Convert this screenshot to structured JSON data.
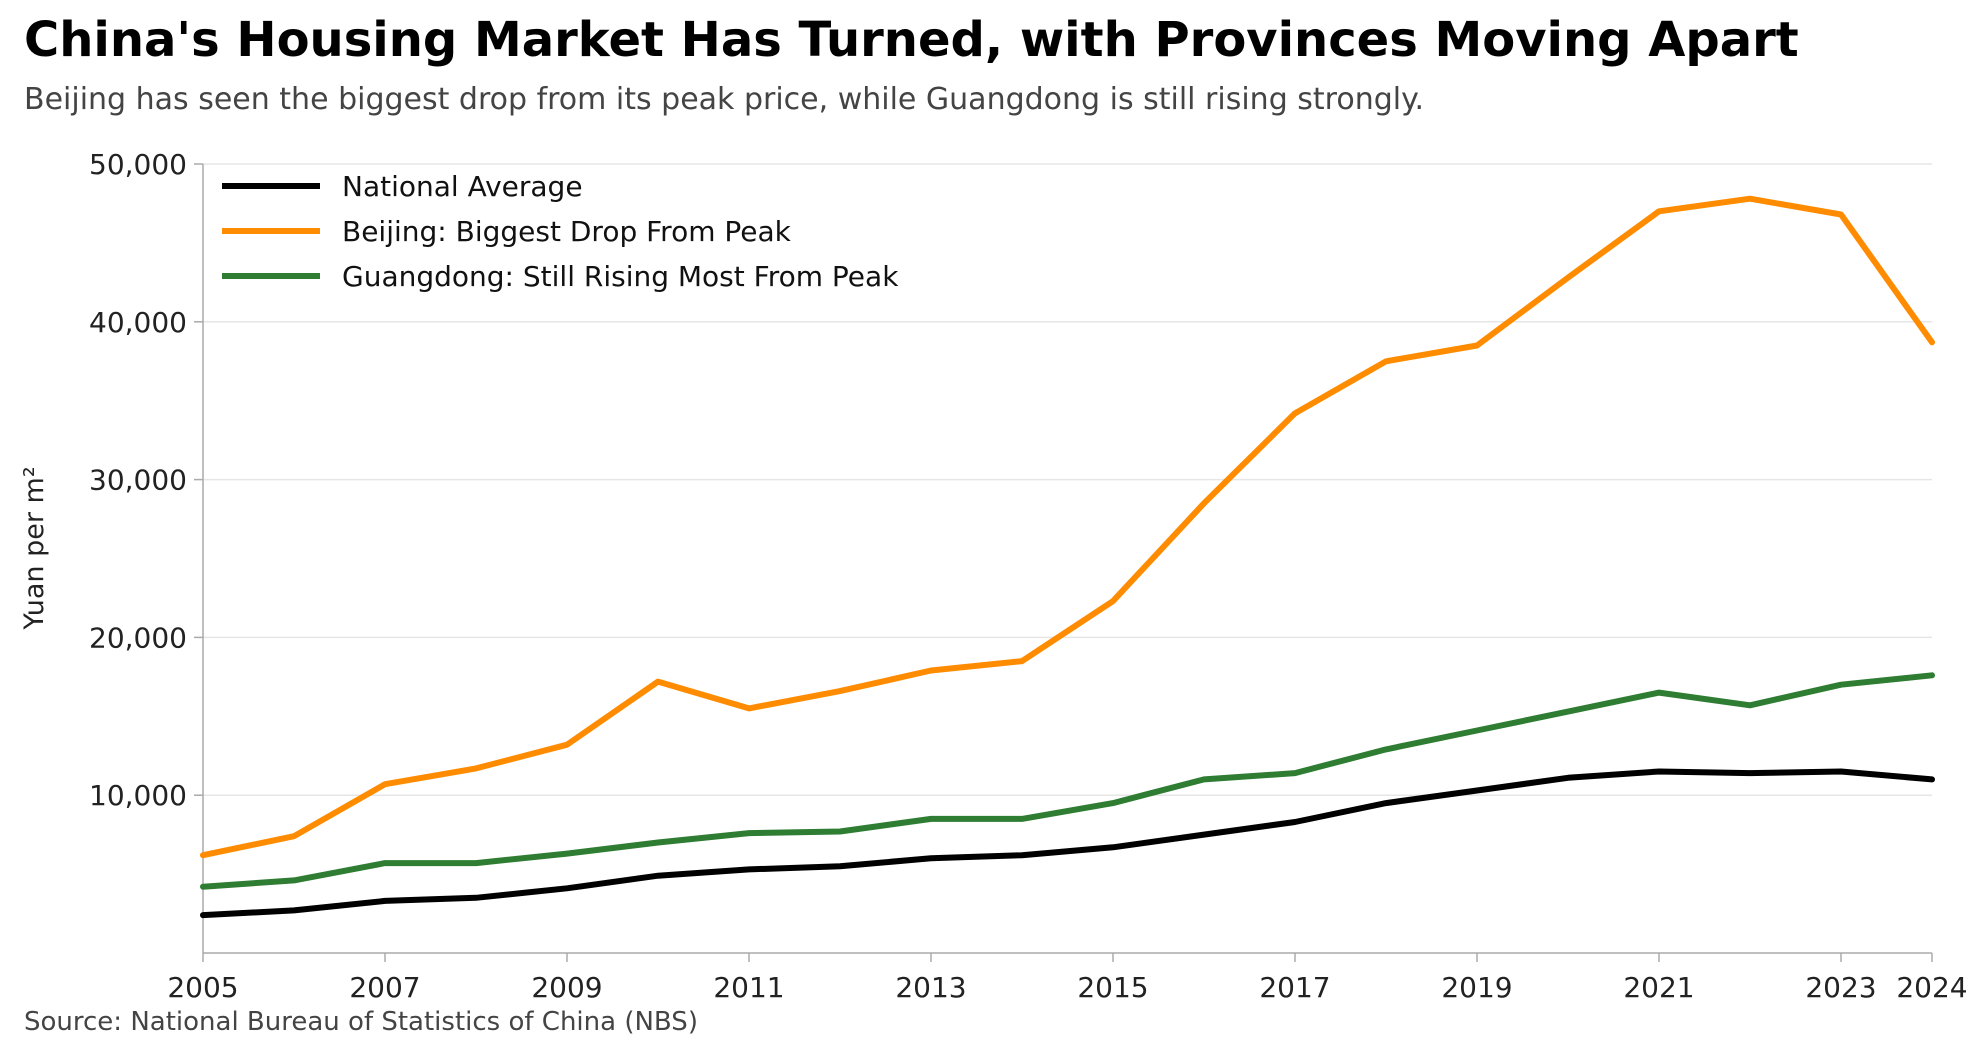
{
  "title": "China's Housing Market Has Turned, with Provinces Moving Apart",
  "subtitle": "Beijing has seen the biggest drop from its peak price, while Guangdong is still rising strongly.",
  "source": "Source: National Bureau of Statistics of China (NBS)",
  "colors": {
    "national": "#000000",
    "beijing": "#FF8C00",
    "guangdong": "#2E7D32",
    "grid": "#e6e6e6",
    "axis": "#aaaaaa"
  },
  "chart_data": {
    "type": "line",
    "ylabel": "Yuan per m²",
    "xlabel": "",
    "x": [
      2005,
      2006,
      2007,
      2008,
      2009,
      2010,
      2011,
      2012,
      2013,
      2014,
      2015,
      2016,
      2017,
      2018,
      2019,
      2020,
      2021,
      2022,
      2023,
      2024
    ],
    "xticks": [
      2005,
      2007,
      2009,
      2011,
      2013,
      2015,
      2017,
      2019,
      2021,
      2023,
      2024
    ],
    "xtick_labels": [
      "2005",
      "2007",
      "2009",
      "2011",
      "2013",
      "2015",
      "2017",
      "2019",
      "2021",
      "2023",
      "2024"
    ],
    "yticks": [
      10000,
      20000,
      30000,
      40000,
      50000
    ],
    "ytick_labels": [
      "10,000",
      "20,000",
      "30,000",
      "40,000",
      "50,000"
    ],
    "xlim": [
      2005,
      2024
    ],
    "ylim": [
      0,
      50000
    ],
    "grid": "horizontal",
    "legend_position": "top-left",
    "series": [
      {
        "key": "national",
        "name": "National Average",
        "values": [
          2400,
          2700,
          3300,
          3500,
          4100,
          4900,
          5300,
          5500,
          6000,
          6200,
          6700,
          7500,
          8300,
          9500,
          10300,
          11100,
          11500,
          11400,
          11500,
          11000
        ]
      },
      {
        "key": "beijing",
        "name": "Beijing: Biggest Drop From Peak",
        "values": [
          6200,
          7400,
          10700,
          11700,
          13200,
          17200,
          15500,
          16600,
          17900,
          18500,
          22300,
          28500,
          34200,
          37500,
          38500,
          42800,
          47000,
          47800,
          46800,
          38700
        ]
      },
      {
        "key": "guangdong",
        "name": "Guangdong: Still Rising Most From Peak",
        "values": [
          4200,
          4600,
          5700,
          5700,
          6300,
          7000,
          7600,
          7700,
          8500,
          8500,
          9500,
          11000,
          11400,
          12900,
          14100,
          15300,
          16500,
          15700,
          17000,
          17600
        ]
      }
    ]
  }
}
